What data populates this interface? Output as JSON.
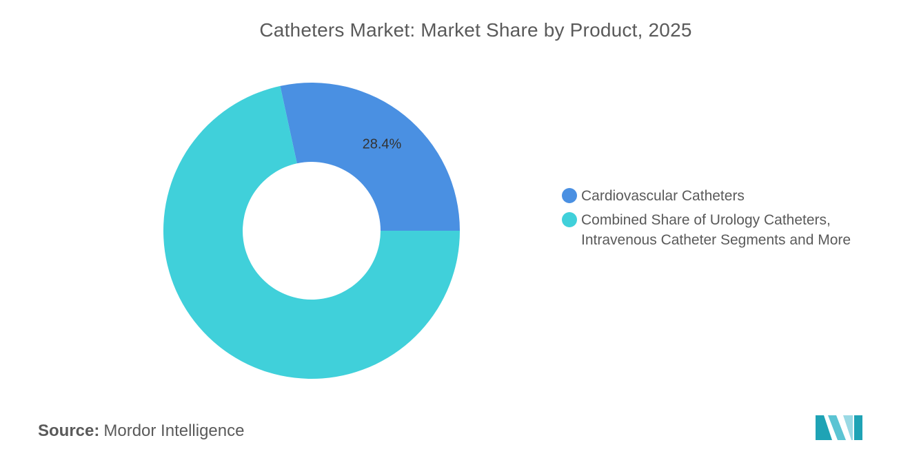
{
  "chart_data": {
    "type": "pie",
    "donut": true,
    "title": "Catheters Market: Market Share by Product, 2025",
    "series": [
      {
        "name": "Cardiovascular Catheters",
        "value": 28.4,
        "label": "28.4%",
        "color": "#4a90e2"
      },
      {
        "name": "Combined Share of Urology Catheters, Intravenous Catheter Segments and More",
        "value": 71.6,
        "label": "",
        "color": "#40d0da"
      }
    ],
    "legend_position": "right"
  },
  "source": {
    "prefix": "Source:",
    "text": "Mordor Intelligence"
  },
  "logo": {
    "icon": "mordor-intelligence-logo",
    "colors": [
      "#1fa3b5",
      "#5bc4d3",
      "#9ad9e4"
    ]
  }
}
